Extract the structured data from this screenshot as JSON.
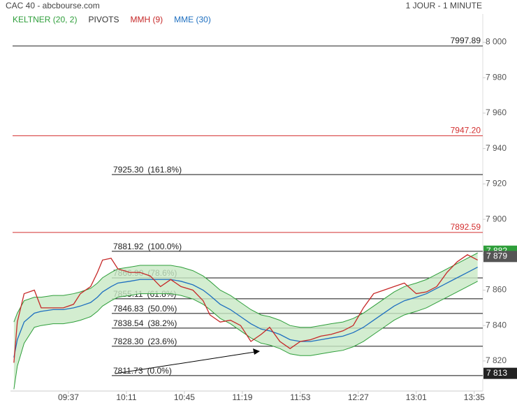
{
  "chart_data": {
    "type": "line",
    "title": "CAC 40 - abcbourse.com",
    "subtitle": "1 JOUR - 1 MINUTE",
    "x": [
      545,
      547,
      551,
      557,
      561,
      568,
      574,
      580,
      584,
      590,
      594,
      597,
      602,
      606,
      613,
      619,
      625,
      631,
      637,
      643,
      650,
      656,
      660,
      666,
      672,
      678,
      684,
      690,
      695,
      701,
      707,
      713,
      719,
      725,
      731,
      738,
      744,
      750,
      756,
      762,
      768,
      774,
      781,
      787,
      793,
      799,
      805,
      811,
      817
    ],
    "xlim": [
      543,
      820
    ],
    "xticks": [
      {
        "value": 577,
        "label": "09:37"
      },
      {
        "value": 611,
        "label": "10:11"
      },
      {
        "value": 645,
        "label": "10:45"
      },
      {
        "value": 679,
        "label": "11:19"
      },
      {
        "value": 713,
        "label": "11:53"
      },
      {
        "value": 747,
        "label": "12:27"
      },
      {
        "value": 781,
        "label": "13:01"
      },
      {
        "value": 815,
        "label": "13:35"
      }
    ],
    "ylim": [
      7803,
      8016
    ],
    "yticks": [
      {
        "value": 7820,
        "label": "7 820"
      },
      {
        "value": 7840,
        "label": "7 840"
      },
      {
        "value": 7860,
        "label": "7 860"
      },
      {
        "value": 7880,
        "label": "7 880"
      },
      {
        "value": 7900,
        "label": "7 900"
      },
      {
        "value": 7920,
        "label": "7 920"
      },
      {
        "value": 7940,
        "label": "7 940"
      },
      {
        "value": 7960,
        "label": "7 960"
      },
      {
        "value": 7980,
        "label": "7 980"
      },
      {
        "value": 8000,
        "label": "8 000"
      }
    ],
    "legend_label": "PIVOTS",
    "keltner": {
      "name": "KELTNER (20, 2)",
      "color": "#2e9e3a",
      "fill": "#c8e8c4",
      "upper": [
        7842,
        7847,
        7854,
        7856,
        7856,
        7857,
        7857,
        7858,
        7859,
        7861,
        7864,
        7867,
        7870,
        7872,
        7873,
        7874,
        7874,
        7874,
        7874,
        7873,
        7871,
        7868,
        7865,
        7860,
        7857,
        7853,
        7849,
        7846,
        7845,
        7843,
        7840,
        7839,
        7839,
        7840,
        7841,
        7842,
        7844,
        7847,
        7851,
        7855,
        7859,
        7862,
        7864,
        7866,
        7869,
        7872,
        7875,
        7878,
        7881
      ],
      "lower": [
        7804,
        7817,
        7830,
        7839,
        7840,
        7841,
        7841,
        7842,
        7843,
        7845,
        7848,
        7851,
        7854,
        7856,
        7857,
        7858,
        7858,
        7858,
        7858,
        7857,
        7855,
        7852,
        7849,
        7844,
        7841,
        7837,
        7833,
        7830,
        7829,
        7827,
        7824,
        7823,
        7823,
        7824,
        7825,
        7826,
        7828,
        7831,
        7835,
        7839,
        7843,
        7846,
        7848,
        7850,
        7853,
        7856,
        7859,
        7862,
        7865
      ]
    },
    "series": [
      {
        "name": "MMH (9)",
        "color": "#c62828",
        "values": [
          7819,
          7842,
          7858,
          7860,
          7850,
          7850,
          7850,
          7852,
          7858,
          7862,
          7870,
          7877,
          7878,
          7872,
          7870,
          7870,
          7868,
          7862,
          7866,
          7862,
          7860,
          7854,
          7846,
          7842,
          7843,
          7840,
          7831,
          7835,
          7839,
          7831,
          7827,
          7831,
          7832,
          7834,
          7835,
          7837,
          7840,
          7850,
          7858,
          7860,
          7862,
          7864,
          7858,
          7859,
          7862,
          7870,
          7876,
          7880,
          7877
        ]
      },
      {
        "name": "MME (30)",
        "color": "#1e6fc0",
        "values": [
          7822,
          7832,
          7842,
          7847,
          7848,
          7849,
          7849,
          7850,
          7851,
          7853,
          7856,
          7859,
          7862,
          7864,
          7865,
          7866,
          7866,
          7866,
          7866,
          7865,
          7863,
          7860,
          7857,
          7852,
          7849,
          7845,
          7841,
          7838,
          7837,
          7835,
          7832,
          7831,
          7831,
          7832,
          7833,
          7834,
          7836,
          7839,
          7843,
          7847,
          7851,
          7854,
          7856,
          7858,
          7861,
          7864,
          7867,
          7870,
          7873
        ]
      }
    ],
    "pivots": [
      {
        "value": 7997.89,
        "color": "#222222"
      },
      {
        "value": 7947.2,
        "label": "7947.20",
        "color": "#d32f2f"
      },
      {
        "value": 7892.59,
        "color": "#d32f2f"
      }
    ],
    "fibonacci": [
      {
        "value": 7925.3,
        "label": "7925.30",
        "ratio": "(161.8%)"
      },
      {
        "value": 7881.92,
        "label": "7881.92",
        "ratio": "(100.0%)"
      },
      {
        "value": 7866.9,
        "label": "7866.90",
        "ratio": "(78.6%)"
      },
      {
        "value": 7855.11,
        "label": "7855.11",
        "ratio": "(61.8%)"
      },
      {
        "value": 7846.83,
        "label": "7846.83",
        "ratio": "(50.0%)"
      },
      {
        "value": 7838.54,
        "label": "7838.54",
        "ratio": "(38.2%)"
      },
      {
        "value": 7828.3,
        "label": "7828.30",
        "ratio": "(23.6%)"
      },
      {
        "value": 7811.73,
        "label": "7811.73",
        "ratio": "(0.0%)"
      }
    ],
    "badges": [
      {
        "value": 7882,
        "label": "7 882",
        "color": "#2e9e3a"
      },
      {
        "value": 7879,
        "label": "7 879",
        "color": "#555555"
      },
      {
        "value": 7813,
        "label": "7 813",
        "color": "#222222"
      }
    ]
  }
}
